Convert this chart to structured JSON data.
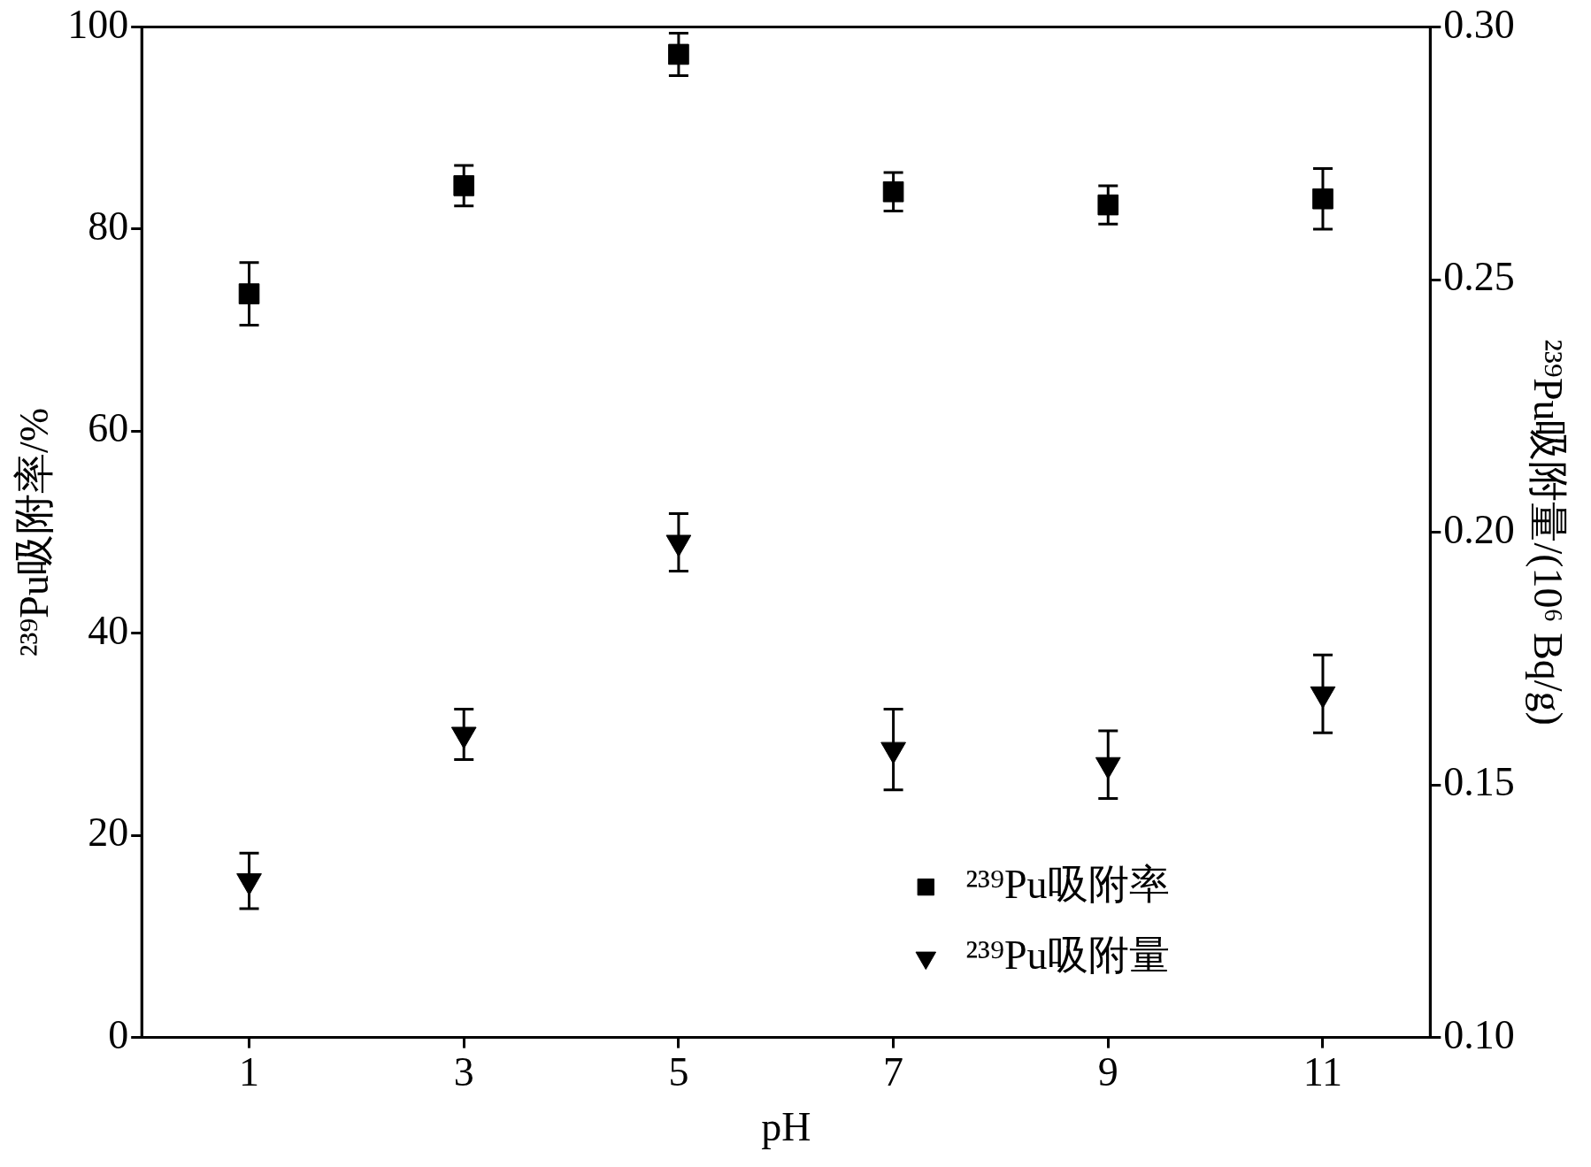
{
  "chart_data": {
    "type": "scatter",
    "xlabel": "pH",
    "ylabel": "²³⁹Pu吸附率/%",
    "y2label": "²³⁹Pu吸附量/(10⁶ Bq/g)",
    "x": [
      1,
      3,
      5,
      7,
      9,
      11
    ],
    "series": [
      {
        "name": "²³⁹Pu吸附率",
        "color": "#000000",
        "marker": "square",
        "values": [
          73.6,
          84.3,
          97.3,
          83.7,
          82.4,
          83.0
        ],
        "errors": [
          3.1,
          2.0,
          2.1,
          1.9,
          1.9,
          3.0
        ]
      },
      {
        "name": "²³⁹Pu吸附量",
        "color": "#000000",
        "marker": "triangle",
        "axis": "y2",
        "values": [
          0.131,
          0.16,
          0.198,
          0.157,
          0.154,
          0.168
        ],
        "errors": [
          0.0055,
          0.005,
          0.0057,
          0.008,
          0.0067,
          0.0077
        ]
      }
    ],
    "xlim": [
      0,
      12
    ],
    "xticks": [
      1,
      3,
      5,
      7,
      9,
      11
    ],
    "ylim": [
      0,
      100
    ],
    "yticks": [
      0,
      20,
      40,
      60,
      80,
      100
    ],
    "y2lim": [
      0.1,
      0.3
    ],
    "y2ticks": [
      {
        "value": 0.1,
        "label": "0.10"
      },
      {
        "value": 0.15,
        "label": "0.15"
      },
      {
        "value": 0.2,
        "label": "0.20"
      },
      {
        "value": 0.25,
        "label": "0.25"
      },
      {
        "value": 0.3,
        "label": "0.30"
      }
    ],
    "grid": false,
    "legend": "bottom right"
  }
}
